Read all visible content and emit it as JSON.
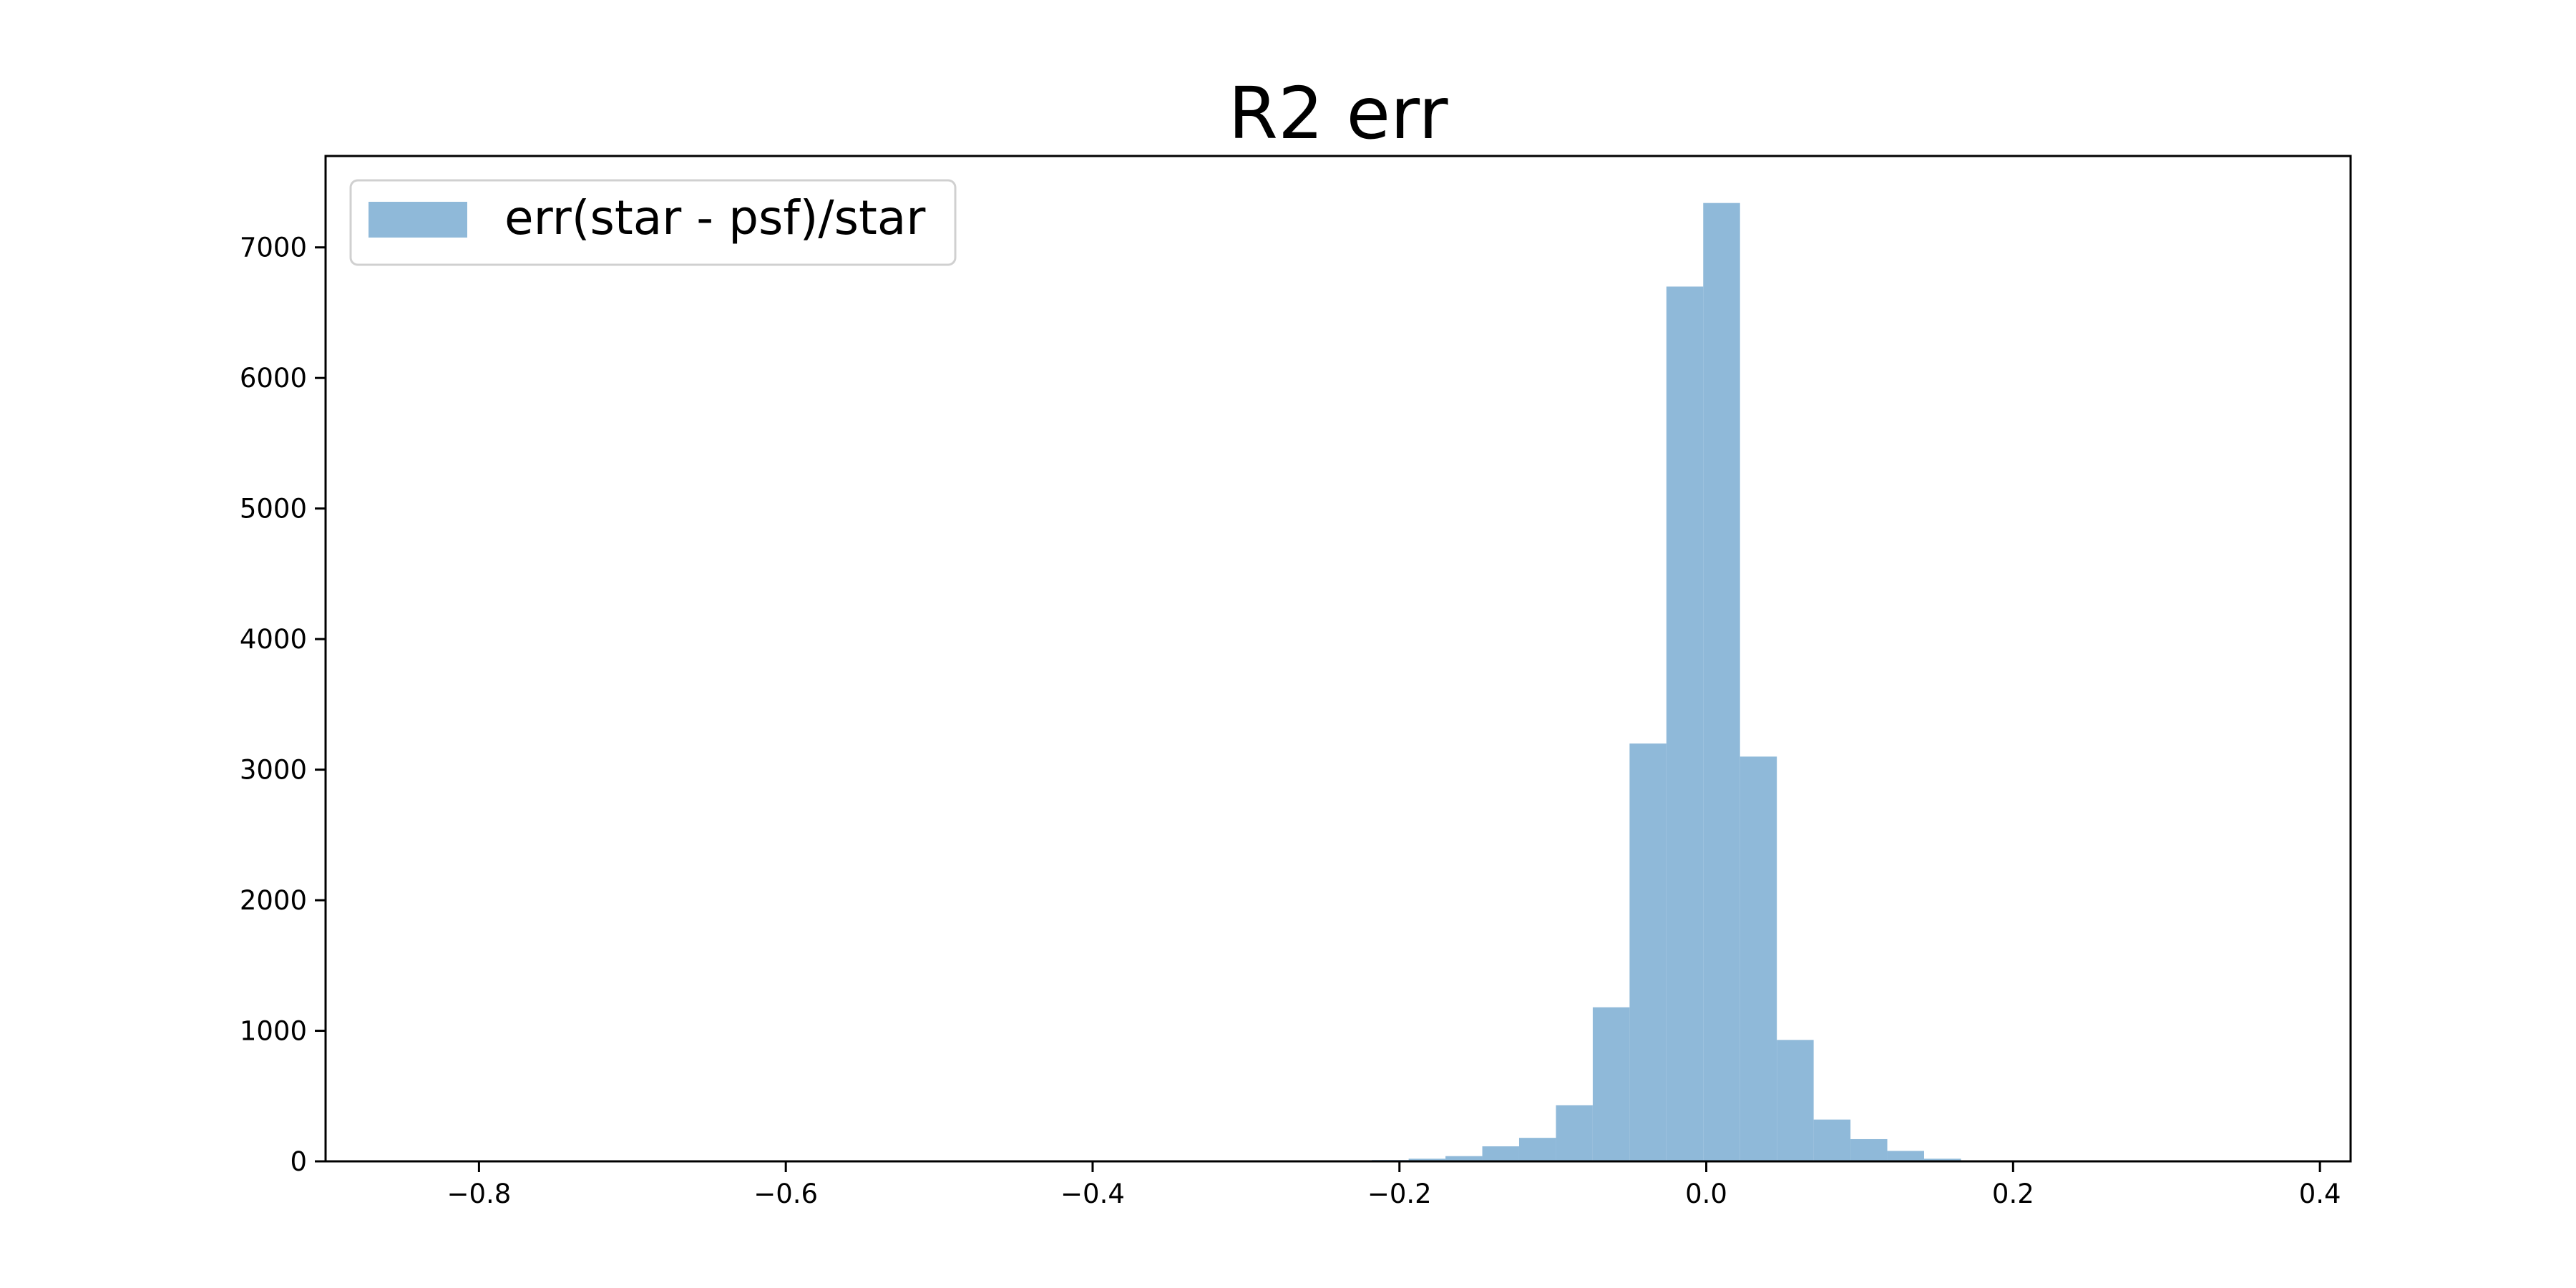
{
  "chart_data": {
    "type": "bar",
    "title": "R2 err",
    "xlabel": "",
    "ylabel": "",
    "xlim": [
      -0.9,
      0.42
    ],
    "ylim": [
      0,
      7700
    ],
    "xticks": [
      -0.8,
      -0.6,
      -0.4,
      -0.2,
      0.0,
      0.2,
      0.4
    ],
    "xtick_labels": [
      "−0.8",
      "−0.6",
      "−0.4",
      "−0.2",
      "0.0",
      "0.2",
      "0.4"
    ],
    "yticks": [
      0,
      1000,
      2000,
      3000,
      4000,
      5000,
      6000,
      7000
    ],
    "ytick_labels": [
      "0",
      "1000",
      "2000",
      "3000",
      "4000",
      "5000",
      "6000",
      "7000"
    ],
    "grid": false,
    "legend_position": "upper-left",
    "bar_color": "#8fb9d9",
    "series": [
      {
        "name": "err(star - psf)/star",
        "bin_width": 0.024,
        "bin_starts": [
          -0.242,
          -0.218,
          -0.194,
          -0.17,
          -0.146,
          -0.122,
          -0.098,
          -0.074,
          -0.05,
          -0.026,
          -0.002,
          0.022,
          0.046,
          0.07,
          0.094,
          0.118,
          0.142,
          0.166
        ],
        "values": [
          5,
          10,
          20,
          40,
          115,
          180,
          430,
          1180,
          3200,
          6700,
          7340,
          3100,
          930,
          320,
          170,
          80,
          20,
          5
        ]
      }
    ]
  }
}
